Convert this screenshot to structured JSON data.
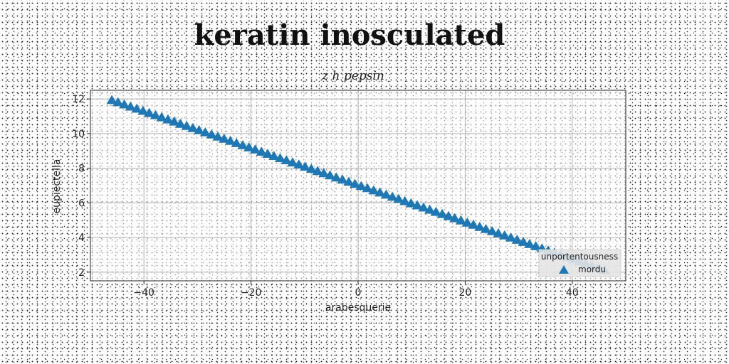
{
  "chart_data": {
    "type": "scatter",
    "title": "keratin inosculated",
    "subtitle": "z h pepsin",
    "xlabel": "arabesquerie",
    "ylabel": "eupiectella",
    "xlim": [
      -50,
      50
    ],
    "ylim": [
      1.5,
      12.5
    ],
    "xticks": [
      -40,
      -20,
      0,
      20,
      40
    ],
    "yticks": [
      2,
      4,
      6,
      8,
      10,
      12
    ],
    "grid": true,
    "legend": {
      "title": "unportentousness",
      "placement": "bottom-right"
    },
    "series": [
      {
        "name": "mordu",
        "marker": "triangle-up",
        "color": "#1f77b4",
        "x_range": [
          -46,
          46
        ],
        "y_at_start": 11.9,
        "y_at_end": 2.1,
        "count": 80
      }
    ]
  }
}
